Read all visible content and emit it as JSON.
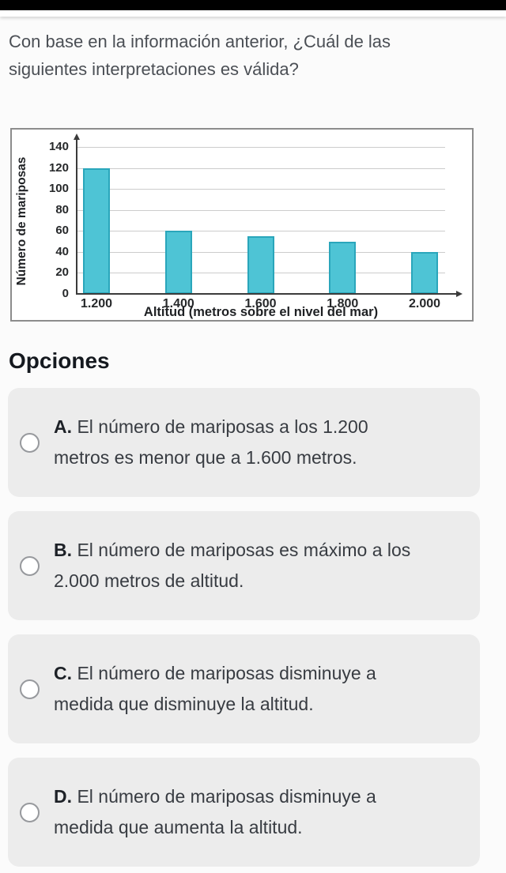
{
  "question": "Con base en la información anterior, ¿Cuál de las siguientes interpretaciones es válida?",
  "options_heading": "Opciones",
  "options": [
    {
      "letter": "A.",
      "text": "El número de mariposas a los 1.200 metros es menor que a 1.600 metros."
    },
    {
      "letter": "B.",
      "text": "El número de mariposas es máximo a los 2.000 metros de altitud."
    },
    {
      "letter": "C.",
      "text": "El número de mariposas disminuye a medida que disminuye la altitud."
    },
    {
      "letter": "D.",
      "text": "El número de mariposas disminuye a medida que aumenta la altitud."
    }
  ],
  "chart_data": {
    "type": "bar",
    "categories": [
      "1.200",
      "1.400",
      "1.600",
      "1.800",
      "2.000"
    ],
    "values": [
      120,
      60,
      55,
      50,
      40
    ],
    "title": "",
    "xlabel": "Altitud (metros sobre el nivel del mar)",
    "ylabel": "Número de mariposas",
    "ylim": [
      0,
      140
    ],
    "ytick_step": 20,
    "grid": true,
    "legend": false,
    "bar_fill": "#4ec4d5",
    "bar_border": "#2aa6bb"
  }
}
